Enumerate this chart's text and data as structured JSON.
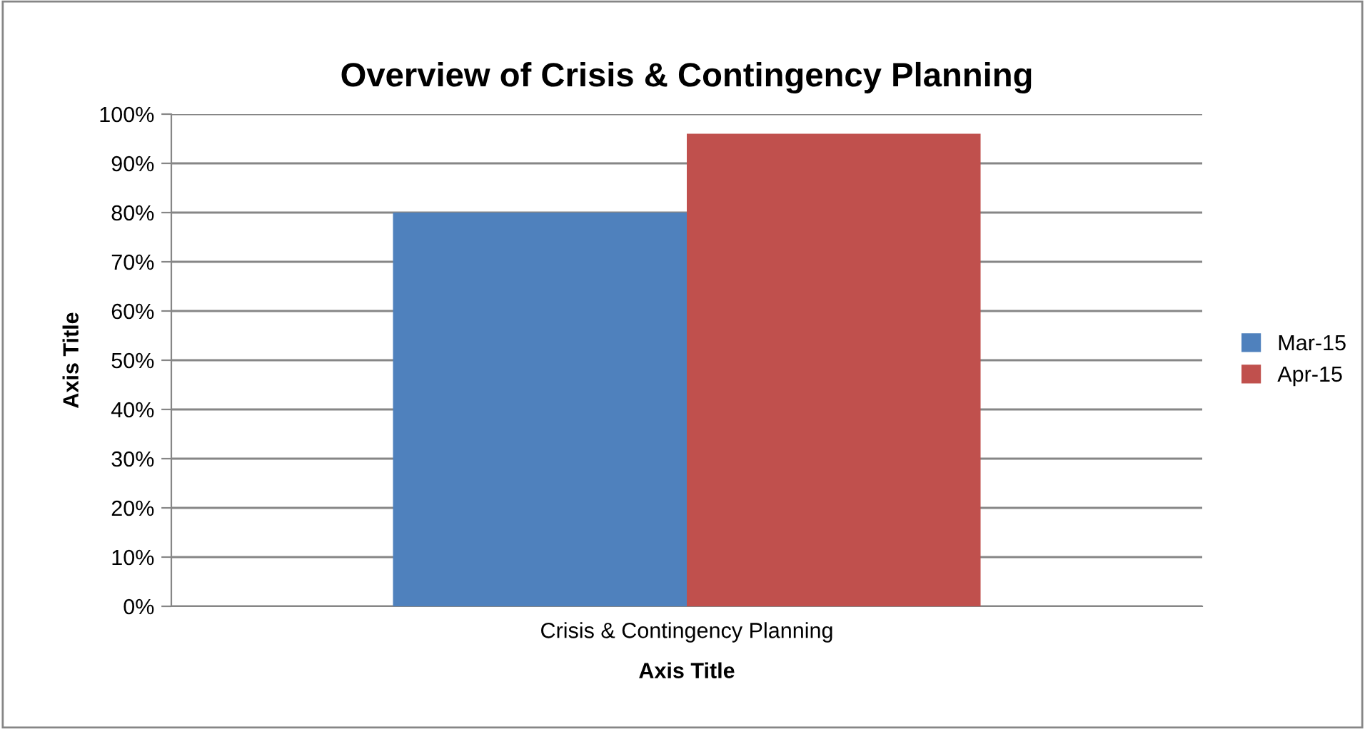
{
  "chart_data": {
    "type": "bar",
    "title": "Overview of Crisis & Contingency Planning",
    "xlabel": "Axis Title",
    "ylabel": "Axis Title",
    "categories": [
      "Crisis & Contingency Planning"
    ],
    "series": [
      {
        "name": "Mar-15",
        "color": "#4f81bd",
        "values": [
          80
        ]
      },
      {
        "name": "Apr-15",
        "color": "#c0504d",
        "values": [
          96
        ]
      }
    ],
    "ylim": [
      0,
      100
    ],
    "yticks": [
      {
        "value": 0,
        "label": "0%"
      },
      {
        "value": 10,
        "label": "10%"
      },
      {
        "value": 20,
        "label": "20%"
      },
      {
        "value": 30,
        "label": "30%"
      },
      {
        "value": 40,
        "label": "40%"
      },
      {
        "value": 50,
        "label": "50%"
      },
      {
        "value": 60,
        "label": "60%"
      },
      {
        "value": 70,
        "label": "70%"
      },
      {
        "value": 80,
        "label": "80%"
      },
      {
        "value": 90,
        "label": "90%"
      },
      {
        "value": 100,
        "label": "100%"
      }
    ],
    "grid": "y",
    "legend": "right"
  }
}
